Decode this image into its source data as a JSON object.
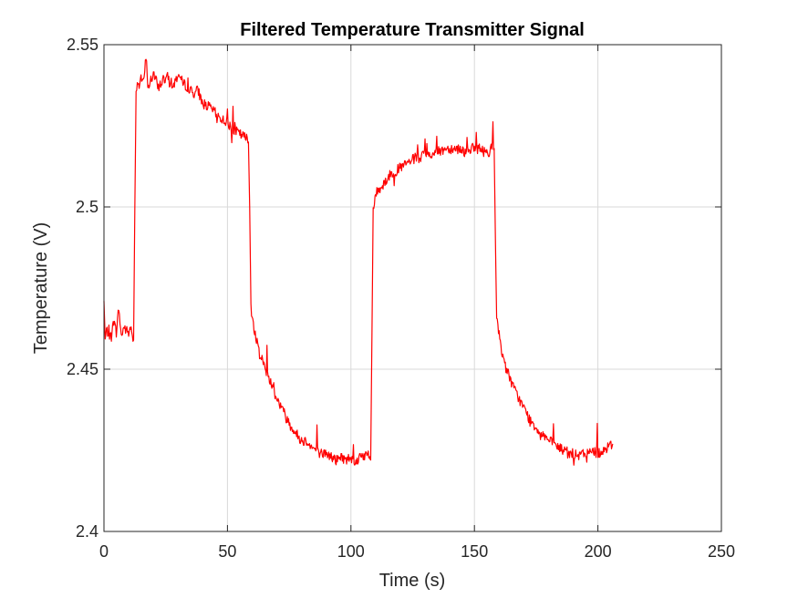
{
  "chart_data": {
    "type": "line",
    "title": "Filtered Temperature Transmitter Signal",
    "xlabel": "Time (s)",
    "ylabel": "Temperature (V)",
    "xlim": [
      0,
      250
    ],
    "ylim": [
      2.4,
      2.55
    ],
    "xticks": [
      0,
      50,
      100,
      150,
      200,
      250
    ],
    "xtick_labels": [
      "0",
      "50",
      "100",
      "150",
      "200",
      "250"
    ],
    "yticks": [
      2.4,
      2.45,
      2.5,
      2.55
    ],
    "ytick_labels": [
      "2.4",
      "2.45",
      "2.5",
      "2.55"
    ],
    "grid": true,
    "series": [
      {
        "color": "#ff0000",
        "x": [
          0,
          0.5,
          1,
          2,
          3,
          4,
          5,
          6,
          7,
          8,
          9,
          10,
          11,
          12,
          12.5,
          13,
          13.5,
          14,
          15,
          16,
          17,
          18,
          20,
          22,
          24,
          26,
          28,
          30,
          32,
          34,
          36,
          38,
          40,
          42,
          44,
          46,
          48,
          50,
          52,
          54,
          56,
          58,
          58.5,
          59,
          59.5,
          60,
          61,
          62,
          64,
          66,
          68,
          70,
          72,
          74,
          76,
          78,
          80,
          82,
          84,
          86,
          88,
          90,
          92,
          94,
          96,
          98,
          100,
          102,
          104,
          106,
          107,
          108,
          108.5,
          109,
          110,
          111,
          112,
          114,
          116,
          118,
          120,
          122,
          124,
          126,
          128,
          130,
          132,
          134,
          136,
          138,
          140,
          142,
          144,
          146,
          148,
          150,
          152,
          154,
          156,
          157,
          158,
          158.5,
          159,
          160,
          161,
          162,
          164,
          166,
          168,
          170,
          172,
          174,
          176,
          178,
          180,
          182,
          184,
          186,
          188,
          190,
          192,
          194,
          196,
          198,
          200,
          202,
          204,
          206
        ],
        "y": [
          2.471,
          2.459,
          2.462,
          2.461,
          2.46,
          2.465,
          2.461,
          2.469,
          2.46,
          2.463,
          2.462,
          2.461,
          2.463,
          2.459,
          2.5,
          2.535,
          2.539,
          2.537,
          2.54,
          2.538,
          2.546,
          2.537,
          2.541,
          2.537,
          2.539,
          2.54,
          2.537,
          2.541,
          2.538,
          2.537,
          2.535,
          2.536,
          2.532,
          2.531,
          2.53,
          2.528,
          2.527,
          2.526,
          2.524,
          2.523,
          2.522,
          2.521,
          2.52,
          2.5,
          2.47,
          2.466,
          2.462,
          2.458,
          2.453,
          2.449,
          2.445,
          2.441,
          2.438,
          2.435,
          2.432,
          2.43,
          2.428,
          2.428,
          2.426,
          2.425,
          2.424,
          2.424,
          2.423,
          2.422,
          2.423,
          2.422,
          2.423,
          2.421,
          2.424,
          2.423,
          2.424,
          2.422,
          2.46,
          2.499,
          2.504,
          2.505,
          2.506,
          2.508,
          2.51,
          2.511,
          2.512,
          2.513,
          2.514,
          2.515,
          2.515,
          2.516,
          2.516,
          2.517,
          2.517,
          2.518,
          2.518,
          2.518,
          2.518,
          2.517,
          2.518,
          2.518,
          2.518,
          2.517,
          2.517,
          2.519,
          2.518,
          2.49,
          2.465,
          2.461,
          2.456,
          2.452,
          2.448,
          2.444,
          2.441,
          2.438,
          2.435,
          2.433,
          2.431,
          2.43,
          2.428,
          2.427,
          2.426,
          2.425,
          2.424,
          2.424,
          2.423,
          2.424,
          2.424,
          2.425,
          2.424,
          2.425,
          2.426,
          2.427
        ]
      }
    ]
  }
}
